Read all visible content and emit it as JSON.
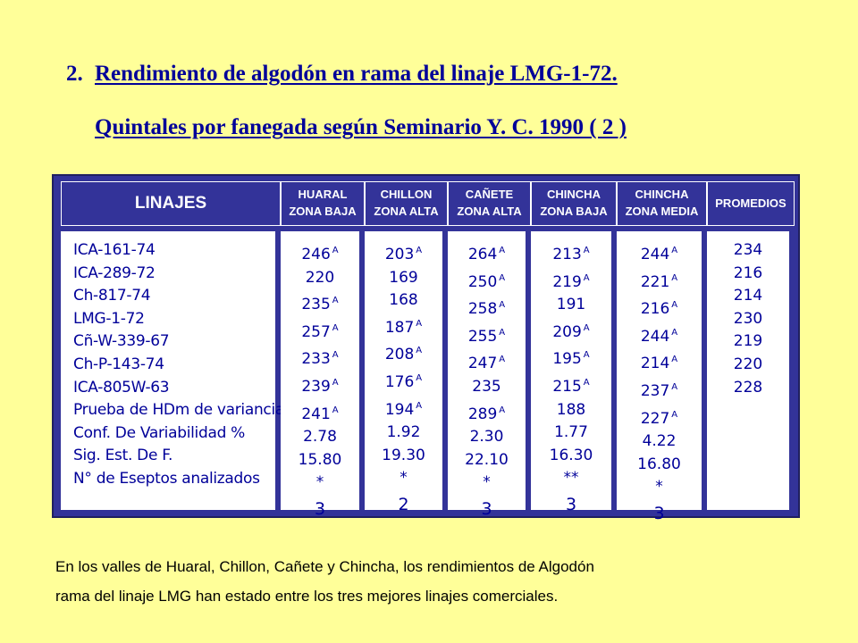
{
  "title": {
    "number": "2.",
    "line1": "Rendimiento de algodón en rama del linaje LMG-1-72.",
    "line2": "Quintales por fanegada según Seminario Y. C. 1990 ( 2 )"
  },
  "table": {
    "header_first": "LINAJES",
    "columns": [
      {
        "line1": "HUARAL",
        "line2": "ZONA BAJA"
      },
      {
        "line1": "CHILLON",
        "line2": "ZONA ALTA"
      },
      {
        "line1": "CAÑETE",
        "line2": "ZONA ALTA"
      },
      {
        "line1": "CHINCHA",
        "line2": "ZONA BAJA"
      },
      {
        "line1": "CHINCHA",
        "line2": "ZONA MEDIA"
      }
    ],
    "header_last": "PROMEDIOS",
    "row_labels": [
      "ICA-161-74",
      "ICA-289-72",
      "Ch-817-74",
      "LMG-1-72",
      "Cñ-W-339-67",
      "Ch-P-143-74",
      "ICA-805W-63",
      "Prueba de HDm de variancias",
      "Conf. De Variabilidad %",
      "Sig. Est. De F.",
      "N° de Eseptos analizados"
    ],
    "data": [
      [
        {
          "v": "246",
          "s": "A"
        },
        {
          "v": "220",
          "s": ""
        },
        {
          "v": "235",
          "s": "A"
        },
        {
          "v": "257",
          "s": "A"
        },
        {
          "v": "233",
          "s": "A"
        },
        {
          "v": "239",
          "s": "A"
        },
        {
          "v": "241",
          "s": "A"
        },
        {
          "v": "2.78",
          "s": ""
        },
        {
          "v": "15.80",
          "s": ""
        },
        {
          "v": "*",
          "s": ""
        },
        {
          "v": "3",
          "s": ""
        }
      ],
      [
        {
          "v": "203",
          "s": "A"
        },
        {
          "v": "169",
          "s": ""
        },
        {
          "v": "168",
          "s": ""
        },
        {
          "v": "187",
          "s": "A"
        },
        {
          "v": "208",
          "s": "A"
        },
        {
          "v": "176",
          "s": "A"
        },
        {
          "v": "194",
          "s": "A"
        },
        {
          "v": "1.92",
          "s": ""
        },
        {
          "v": "19.30",
          "s": ""
        },
        {
          "v": "*",
          "s": ""
        },
        {
          "v": "2",
          "s": ""
        }
      ],
      [
        {
          "v": "264",
          "s": "A"
        },
        {
          "v": "250",
          "s": "A"
        },
        {
          "v": "258",
          "s": "A"
        },
        {
          "v": "255",
          "s": "A"
        },
        {
          "v": "247",
          "s": "A"
        },
        {
          "v": "235",
          "s": ""
        },
        {
          "v": "289",
          "s": "A"
        },
        {
          "v": "2.30",
          "s": ""
        },
        {
          "v": "22.10",
          "s": ""
        },
        {
          "v": "*",
          "s": ""
        },
        {
          "v": "3",
          "s": ""
        }
      ],
      [
        {
          "v": "213",
          "s": "A"
        },
        {
          "v": "219",
          "s": "A"
        },
        {
          "v": "191",
          "s": ""
        },
        {
          "v": "209",
          "s": "A"
        },
        {
          "v": "195",
          "s": "A"
        },
        {
          "v": "215",
          "s": "A"
        },
        {
          "v": "188",
          "s": ""
        },
        {
          "v": "1.77",
          "s": ""
        },
        {
          "v": "16.30",
          "s": ""
        },
        {
          "v": "**",
          "s": ""
        },
        {
          "v": "3",
          "s": ""
        }
      ],
      [
        {
          "v": "244",
          "s": "A"
        },
        {
          "v": "221",
          "s": "A"
        },
        {
          "v": "216",
          "s": "A"
        },
        {
          "v": "244",
          "s": "A"
        },
        {
          "v": "214",
          "s": "A"
        },
        {
          "v": "237",
          "s": "A"
        },
        {
          "v": "227",
          "s": "A"
        },
        {
          "v": "4.22",
          "s": ""
        },
        {
          "v": "16.80",
          "s": ""
        },
        {
          "v": "*",
          "s": ""
        },
        {
          "v": "3",
          "s": ""
        }
      ]
    ],
    "promedios": [
      "234",
      "216",
      "214",
      "230",
      "219",
      "220",
      "228"
    ]
  },
  "paragraph": {
    "line1": "En los valles de Huaral, Chillon, Cañete y Chincha, los rendimientos de Algodón",
    "line2": "rama del linaje LMG han estado entre los tres mejores linajes comerciales."
  }
}
